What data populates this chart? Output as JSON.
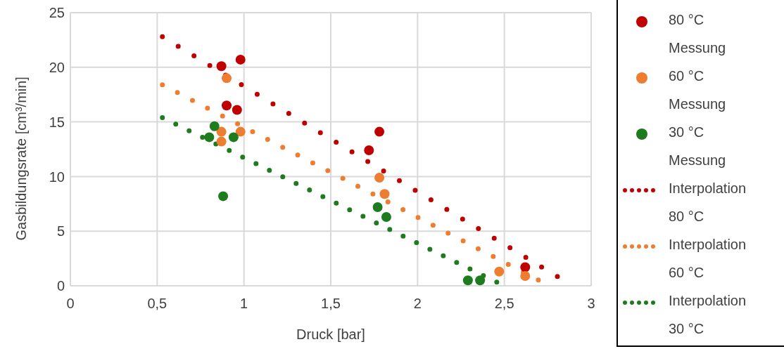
{
  "chart_data": {
    "type": "scatter",
    "xlabel": "Druck [bar]",
    "ylabel": "Gasbildungsrate [cm³/min]",
    "xlim": [
      0,
      3
    ],
    "xticks": [
      0,
      {
        "value": 0.5,
        "label": "0,5"
      },
      1,
      {
        "value": 1.5,
        "label": "1,5"
      },
      2,
      {
        "value": 2.5,
        "label": "2,5"
      },
      3
    ],
    "ylim": [
      0,
      25
    ],
    "yticks": [
      0,
      5,
      10,
      15,
      20,
      25
    ],
    "grid": true,
    "legend": "right",
    "series": [
      {
        "name": "80 °C Messung",
        "marker": "circle",
        "color": "#c00000",
        "x": [
          0.87,
          0.98,
          0.9,
          0.96,
          1.72,
          1.78,
          2.62
        ],
        "values": [
          20.1,
          20.7,
          16.5,
          16.1,
          12.4,
          14.1,
          1.7
        ]
      },
      {
        "name": "60 °C Messung",
        "marker": "circle",
        "color": "#ed7d31",
        "x": [
          0.9,
          0.87,
          0.87,
          0.98,
          1.78,
          1.81,
          2.47,
          2.62
        ],
        "values": [
          19.0,
          14.1,
          13.2,
          14.1,
          9.9,
          8.4,
          1.3,
          0.9
        ]
      },
      {
        "name": "30 °C Messung",
        "marker": "circle",
        "color": "#1e7b1e",
        "x": [
          0.83,
          0.8,
          0.94,
          0.88,
          1.77,
          1.82,
          2.29,
          2.36
        ],
        "values": [
          14.6,
          13.6,
          13.6,
          8.2,
          7.2,
          6.3,
          0.5,
          0.5
        ]
      },
      {
        "name": "Interpolation 80 °C",
        "type": "line",
        "marker": "none",
        "line_style": "dotted",
        "color": "#c00000",
        "x": [
          0.53,
          2.81
        ],
        "values": [
          22.8,
          0.8
        ]
      },
      {
        "name": "Interpolation 60 °C",
        "type": "line",
        "marker": "none",
        "line_style": "dotted",
        "color": "#ed7d31",
        "x": [
          0.53,
          2.7
        ],
        "values": [
          18.4,
          0.5
        ]
      },
      {
        "name": "Interpolation 30 °C",
        "type": "line",
        "marker": "none",
        "line_style": "dotted",
        "color": "#1e7b1e",
        "x": [
          0.53,
          2.46
        ],
        "values": [
          15.4,
          0.3
        ]
      }
    ]
  }
}
